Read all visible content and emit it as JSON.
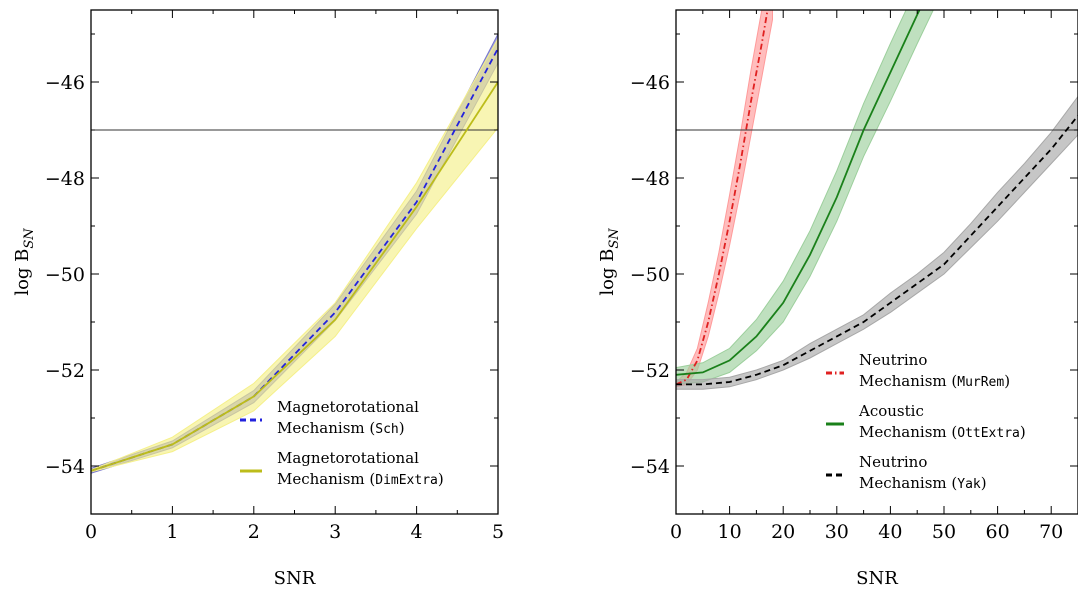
{
  "chart_data": [
    {
      "type": "line",
      "xlabel": "SNR",
      "ylabel": "log B",
      "ylabel_sub": "SN",
      "xlim": [
        0,
        5
      ],
      "ylim": [
        -55,
        -44.5
      ],
      "xticks": [
        0,
        1,
        2,
        3,
        4,
        5
      ],
      "xtick_labels": [
        "0",
        "1",
        "2",
        "3",
        "4",
        "5"
      ],
      "yticks": [
        -54,
        -52,
        -50,
        -48,
        -46
      ],
      "ytick_labels": [
        "−54",
        "−52",
        "−50",
        "−48",
        "−46"
      ],
      "hline": -47,
      "legend_position": "lower-right",
      "series": [
        {
          "name": "Magnetorotational Mechanism (Sch)",
          "legend_lines": [
            "Magnetorotational",
            "Mechanism ("
          ],
          "legend_code": "Sch",
          "color": "#2222dd",
          "band_color": "#7777cc",
          "style": "dashed",
          "x": [
            0,
            1,
            2,
            3,
            4,
            5
          ],
          "y": [
            -54.1,
            -53.55,
            -52.55,
            -50.8,
            -48.5,
            -45.3
          ],
          "lower": [
            -54.15,
            -53.62,
            -52.68,
            -50.97,
            -48.75,
            -45.6
          ],
          "upper": [
            -54.05,
            -53.48,
            -52.43,
            -50.63,
            -48.27,
            -45.0
          ]
        },
        {
          "name": "Magnetorotational Mechanism (DimExtra)",
          "legend_lines": [
            "Magnetorotational",
            "Mechanism ("
          ],
          "legend_code": "DimExtra",
          "color": "#bcbc1a",
          "band_color": "#f5f08a",
          "style": "solid",
          "x": [
            0,
            1,
            2,
            3,
            4,
            5
          ],
          "y": [
            -54.1,
            -53.55,
            -52.55,
            -50.95,
            -48.6,
            -46.0
          ],
          "lower": [
            -54.12,
            -53.7,
            -52.85,
            -51.3,
            -49.05,
            -46.95
          ],
          "upper": [
            -54.08,
            -53.4,
            -52.28,
            -50.6,
            -48.1,
            -45.1
          ]
        }
      ]
    },
    {
      "type": "line",
      "xlabel": "SNR",
      "ylabel": "log B",
      "ylabel_sub": "SN",
      "xlim": [
        0,
        75
      ],
      "ylim": [
        -55,
        -44.5
      ],
      "xticks": [
        0,
        10,
        20,
        30,
        40,
        50,
        60,
        70
      ],
      "xtick_labels": [
        "0",
        "10",
        "20",
        "30",
        "40",
        "50",
        "60",
        "70"
      ],
      "yticks": [
        -54,
        -52,
        -50,
        -48,
        -46
      ],
      "ytick_labels": [
        "−54",
        "−52",
        "−50",
        "−48",
        "−46"
      ],
      "hline": -47,
      "legend_position": "lower-right",
      "series": [
        {
          "name": "Neutrino Mechanism (MurRem)",
          "legend_lines": [
            "Neutrino",
            "Mechanism ("
          ],
          "legend_code": "MurRem",
          "color": "#e02020",
          "band_color": "#ff9a9a",
          "style": "dashdot",
          "x": [
            0,
            2,
            4,
            6,
            8,
            10,
            12,
            14,
            16,
            18
          ],
          "y": [
            -52.3,
            -52.2,
            -51.8,
            -51.0,
            -50.0,
            -48.9,
            -47.7,
            -46.4,
            -45.2,
            -43.9
          ],
          "lower": [
            -52.35,
            -52.3,
            -52.0,
            -51.3,
            -50.4,
            -49.4,
            -48.3,
            -47.1,
            -45.9,
            -44.7
          ],
          "upper": [
            -52.25,
            -52.05,
            -51.55,
            -50.6,
            -49.55,
            -48.35,
            -47.1,
            -45.75,
            -44.5,
            -43.2
          ]
        },
        {
          "name": "Acoustic Mechanism (OttExtra)",
          "legend_lines": [
            "Acoustic",
            "Mechanism ("
          ],
          "legend_code": "OttExtra",
          "color": "#1a801a",
          "band_color": "#9ccf9c",
          "style": "solid",
          "x": [
            0,
            5,
            10,
            15,
            20,
            25,
            30,
            35,
            40,
            45,
            48
          ],
          "y": [
            -52.1,
            -52.05,
            -51.8,
            -51.3,
            -50.6,
            -49.6,
            -48.4,
            -47.0,
            -45.8,
            -44.6,
            -43.9
          ],
          "lower": [
            -52.3,
            -52.25,
            -52.05,
            -51.6,
            -51.0,
            -50.05,
            -48.9,
            -47.55,
            -46.4,
            -45.2,
            -44.5
          ],
          "upper": [
            -51.95,
            -51.85,
            -51.55,
            -50.95,
            -50.15,
            -49.1,
            -47.85,
            -46.45,
            -45.2,
            -44.0,
            -43.3
          ]
        },
        {
          "name": "Neutrino Mechanism (Yak)",
          "legend_lines": [
            "Neutrino",
            "Mechanism ("
          ],
          "legend_code": "Yak",
          "color": "#000000",
          "band_color": "#a8a8a8",
          "style": "dashed",
          "x": [
            0,
            5,
            10,
            15,
            20,
            25,
            30,
            35,
            40,
            45,
            50,
            55,
            60,
            65,
            70,
            75
          ],
          "y": [
            -52.3,
            -52.3,
            -52.25,
            -52.1,
            -51.9,
            -51.6,
            -51.3,
            -51.0,
            -50.6,
            -50.2,
            -49.8,
            -49.2,
            -48.6,
            -48.0,
            -47.4,
            -46.7
          ],
          "lower": [
            -52.4,
            -52.4,
            -52.35,
            -52.2,
            -52.0,
            -51.75,
            -51.45,
            -51.15,
            -50.8,
            -50.4,
            -50.0,
            -49.45,
            -48.9,
            -48.3,
            -47.7,
            -47.1
          ],
          "upper": [
            -52.2,
            -52.2,
            -52.15,
            -52.0,
            -51.8,
            -51.45,
            -51.15,
            -50.85,
            -50.4,
            -50.0,
            -49.55,
            -48.95,
            -48.3,
            -47.7,
            -47.05,
            -46.3
          ]
        }
      ]
    }
  ]
}
